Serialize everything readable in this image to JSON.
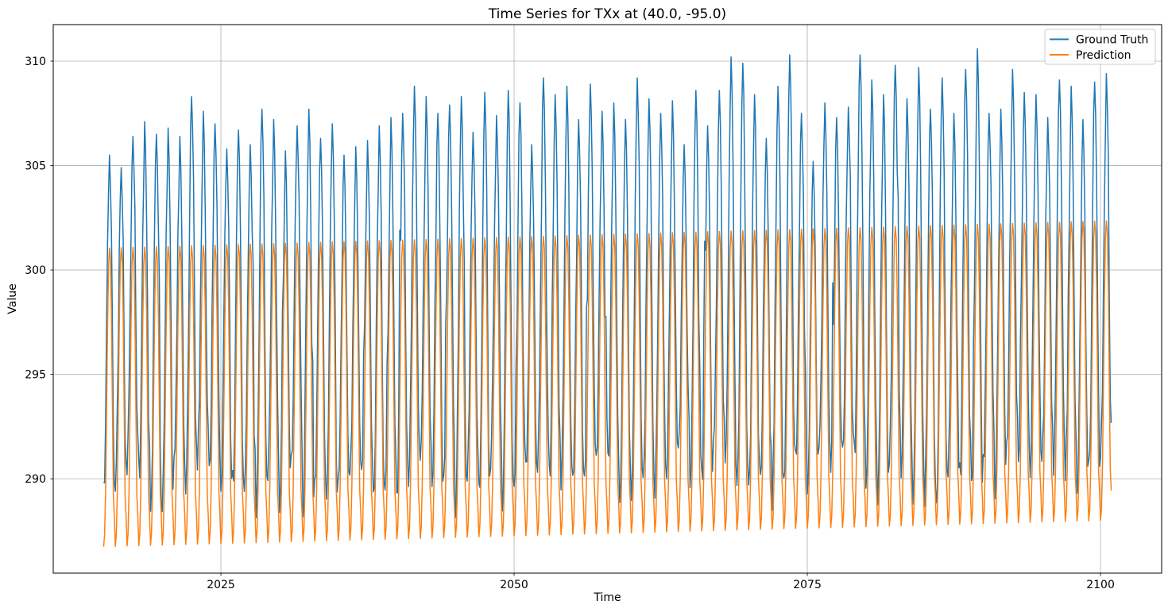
{
  "window": {
    "background": "#ffffff"
  },
  "chart_data": {
    "type": "line",
    "title": "Time Series for TXx at (40.0, -95.0)",
    "xlabel": "Time",
    "ylabel": "Value",
    "x_ticks": [
      2025,
      2050,
      2075,
      2100
    ],
    "y_ticks": [
      290,
      295,
      300,
      305,
      310
    ],
    "xlim": [
      2010.704,
      2105.213
    ],
    "ylim": [
      285.48,
      311.75
    ],
    "grid": true,
    "grid_color": "#b0b0b0",
    "spine_color": "#000000",
    "legend_position": "upper right",
    "sampling": "monthly",
    "year_start": 2015,
    "year_end": 2100,
    "series": [
      {
        "name": "Ground Truth",
        "color": "#1f77b4",
        "line_width": 1.5,
        "seasonal_profile": [
          0.0,
          0.05,
          0.2,
          0.45,
          0.68,
          0.88,
          1.0,
          0.95,
          0.75,
          0.45,
          0.18,
          0.06
        ],
        "annual_max": [
          305.5,
          304.9,
          306.4,
          307.1,
          306.5,
          306.8,
          306.4,
          308.3,
          307.6,
          307.0,
          305.8,
          306.7,
          306.0,
          307.7,
          307.2,
          305.7,
          306.9,
          307.7,
          306.3,
          307.0,
          305.5,
          305.9,
          306.2,
          306.9,
          307.3,
          307.5,
          308.8,
          308.3,
          307.5,
          307.9,
          308.3,
          306.6,
          308.5,
          307.4,
          308.6,
          308.0,
          306.0,
          309.2,
          308.4,
          308.8,
          307.2,
          308.9,
          307.6,
          308.0,
          307.2,
          309.2,
          308.2,
          307.5,
          308.1,
          306.0,
          308.6,
          306.9,
          308.6,
          310.2,
          309.9,
          308.4,
          306.3,
          308.8,
          310.3,
          307.5,
          305.2,
          308.0,
          307.3,
          307.8,
          310.3,
          309.1,
          308.4,
          309.8,
          308.2,
          309.7,
          307.7,
          309.2,
          307.5,
          309.6,
          310.6,
          307.5,
          307.7,
          309.6,
          308.5,
          308.4,
          307.3,
          309.1,
          308.8,
          307.2,
          309.0,
          309.4
        ],
        "winter_base_start": 289.7,
        "winter_base_end": 290.5,
        "winter_variation": 1.3,
        "monthly_noise": 0.9,
        "shoulder_spike_chance": 0.07,
        "noise_seed": 20150423
      },
      {
        "name": "Prediction",
        "color": "#ff7f0e",
        "line_width": 1.5,
        "seasonal_profile": [
          0.0,
          0.04,
          0.18,
          0.45,
          0.73,
          0.94,
          1.0,
          0.96,
          0.78,
          0.47,
          0.17,
          0.1
        ],
        "summer_max_start": 301.05,
        "summer_max_end": 302.35,
        "winter_min_start": 286.75,
        "winter_min_end": 288.0
      }
    ]
  },
  "legend": {
    "entries": [
      {
        "label": "Ground Truth",
        "color": "#1f77b4"
      },
      {
        "label": "Prediction",
        "color": "#ff7f0e"
      }
    ]
  }
}
